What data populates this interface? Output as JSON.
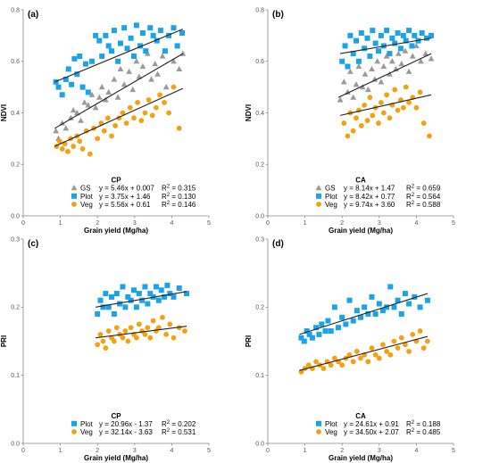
{
  "colors": {
    "GS": "#9a9a9a",
    "Plot": "#1ba3e8",
    "Veg": "#f5a00f",
    "fit_line": "#222222",
    "axis": "#888888"
  },
  "chart_data": [
    {
      "panel": "(a)",
      "type": "scatter",
      "group_title": "CP",
      "xlabel": "Grain yield (Mg/ha)",
      "ylabel": "NDVI",
      "xlim": [
        0,
        5
      ],
      "ylim": [
        0.0,
        0.8
      ],
      "xticks": [
        "0",
        "1",
        "2",
        "3",
        "4",
        "5"
      ],
      "yticks": [
        "0.0",
        "0.2",
        "0.4",
        "0.6",
        "0.8"
      ],
      "legend_placement": "bottom-left",
      "series": [
        {
          "name": "GS",
          "marker": "triangle",
          "equation": "y = 5.46x + 0.007",
          "r2": "0.315",
          "fit": [
            [
              0.85,
              0.34
            ],
            [
              4.3,
              0.63
            ]
          ],
          "x": [
            0.88,
            0.95,
            1.05,
            1.15,
            1.28,
            1.35,
            1.45,
            1.55,
            1.65,
            1.75,
            1.85,
            1.95,
            2.05,
            2.12,
            2.22,
            2.3,
            2.45,
            2.55,
            2.62,
            2.72,
            2.85,
            2.95,
            3.05,
            3.12,
            3.22,
            3.35,
            3.45,
            3.55,
            3.62,
            3.75,
            3.85,
            4.05,
            4.2,
            4.3
          ],
          "y": [
            0.33,
            0.3,
            0.36,
            0.34,
            0.38,
            0.41,
            0.4,
            0.37,
            0.44,
            0.43,
            0.47,
            0.42,
            0.46,
            0.5,
            0.45,
            0.48,
            0.53,
            0.46,
            0.57,
            0.51,
            0.56,
            0.49,
            0.6,
            0.54,
            0.58,
            0.63,
            0.53,
            0.59,
            0.55,
            0.62,
            0.5,
            0.6,
            0.57,
            0.63
          ]
        },
        {
          "name": "Plot",
          "marker": "square",
          "equation": "y = 3.75x + 1.46",
          "r2": "0.130",
          "fit": [
            [
              0.85,
              0.52
            ],
            [
              4.3,
              0.725
            ]
          ],
          "x": [
            0.88,
            0.95,
            1.05,
            1.15,
            1.22,
            1.3,
            1.38,
            1.45,
            1.52,
            1.6,
            1.68,
            1.75,
            1.85,
            1.95,
            2.05,
            2.12,
            2.22,
            2.3,
            2.38,
            2.45,
            2.55,
            2.62,
            2.72,
            2.8,
            2.9,
            2.98,
            3.05,
            3.15,
            3.22,
            3.3,
            3.42,
            3.5,
            3.6,
            3.7,
            3.82,
            3.92,
            4.05,
            4.15,
            4.28
          ],
          "y": [
            0.52,
            0.5,
            0.47,
            0.53,
            0.57,
            0.51,
            0.61,
            0.55,
            0.62,
            0.5,
            0.59,
            0.48,
            0.6,
            0.7,
            0.68,
            0.62,
            0.7,
            0.66,
            0.64,
            0.72,
            0.6,
            0.67,
            0.73,
            0.65,
            0.69,
            0.62,
            0.74,
            0.66,
            0.71,
            0.64,
            0.73,
            0.7,
            0.68,
            0.72,
            0.64,
            0.7,
            0.73,
            0.66,
            0.71
          ]
        },
        {
          "name": "Veg",
          "marker": "circle",
          "equation": "y = 5.56x + 0.61",
          "r2": "0.146",
          "fit": [
            [
              0.85,
              0.27
            ],
            [
              4.3,
              0.495
            ]
          ],
          "x": [
            0.9,
            0.98,
            1.05,
            1.12,
            1.2,
            1.28,
            1.35,
            1.45,
            1.52,
            1.6,
            1.7,
            1.8,
            1.9,
            2.0,
            2.1,
            2.18,
            2.28,
            2.38,
            2.48,
            2.58,
            2.68,
            2.78,
            2.88,
            2.98,
            3.08,
            3.18,
            3.28,
            3.38,
            3.48,
            3.58,
            3.68,
            3.8,
            3.92,
            4.05,
            4.2
          ],
          "y": [
            0.27,
            0.29,
            0.26,
            0.28,
            0.25,
            0.3,
            0.27,
            0.31,
            0.29,
            0.26,
            0.33,
            0.24,
            0.34,
            0.3,
            0.36,
            0.33,
            0.38,
            0.31,
            0.35,
            0.38,
            0.4,
            0.36,
            0.42,
            0.38,
            0.44,
            0.37,
            0.4,
            0.45,
            0.39,
            0.42,
            0.47,
            0.44,
            0.4,
            0.5,
            0.34
          ]
        }
      ]
    },
    {
      "panel": "(b)",
      "type": "scatter",
      "group_title": "CA",
      "xlabel": "Grain yield (Mg/ha)",
      "ylabel": "NDVI",
      "xlim": [
        0,
        5
      ],
      "ylim": [
        0.0,
        0.8
      ],
      "xticks": [
        "0",
        "1",
        "2",
        "3",
        "4",
        "5"
      ],
      "yticks": [
        "0.0",
        "0.2",
        "0.4",
        "0.6",
        "0.8"
      ],
      "legend_placement": "bottom-left",
      "series": [
        {
          "name": "GS",
          "marker": "triangle",
          "equation": "y = 8.14x + 1.47",
          "r2": "0.659",
          "fit": [
            [
              1.9,
              0.46
            ],
            [
              4.4,
              0.63
            ]
          ],
          "x": [
            1.95,
            2.05,
            2.15,
            2.22,
            2.3,
            2.38,
            2.45,
            2.55,
            2.62,
            2.7,
            2.8,
            2.88,
            2.95,
            3.05,
            3.12,
            3.2,
            3.28,
            3.35,
            3.45,
            3.52,
            3.6,
            3.7,
            3.8,
            3.9,
            4.0,
            4.12,
            4.25,
            4.4
          ],
          "y": [
            0.45,
            0.52,
            0.48,
            0.56,
            0.46,
            0.51,
            0.58,
            0.5,
            0.55,
            0.49,
            0.57,
            0.53,
            0.6,
            0.52,
            0.58,
            0.62,
            0.55,
            0.6,
            0.57,
            0.63,
            0.59,
            0.64,
            0.56,
            0.62,
            0.66,
            0.6,
            0.63,
            0.61
          ]
        },
        {
          "name": "Plot",
          "marker": "square",
          "equation": "y = 8.42x + 0.77",
          "r2": "0.564",
          "fit": [
            [
              1.95,
              0.63
            ],
            [
              4.4,
              0.69
            ]
          ],
          "x": [
            2.0,
            2.08,
            2.15,
            2.22,
            2.3,
            2.38,
            2.45,
            2.52,
            2.6,
            2.68,
            2.75,
            2.82,
            2.9,
            2.98,
            3.05,
            3.12,
            3.2,
            3.28,
            3.35,
            3.42,
            3.5,
            3.58,
            3.65,
            3.72,
            3.8,
            3.88,
            3.95,
            4.05,
            4.15,
            4.28,
            4.4
          ],
          "y": [
            0.6,
            0.66,
            0.58,
            0.7,
            0.63,
            0.68,
            0.6,
            0.71,
            0.65,
            0.69,
            0.62,
            0.72,
            0.67,
            0.64,
            0.7,
            0.66,
            0.72,
            0.63,
            0.69,
            0.67,
            0.71,
            0.65,
            0.7,
            0.68,
            0.72,
            0.66,
            0.7,
            0.68,
            0.71,
            0.69,
            0.7
          ]
        },
        {
          "name": "Veg",
          "marker": "circle",
          "equation": "y = 9.74x + 3.60",
          "r2": "0.588",
          "fit": [
            [
              1.95,
              0.39
            ],
            [
              4.4,
              0.47
            ]
          ],
          "x": [
            2.05,
            2.15,
            2.22,
            2.3,
            2.38,
            2.45,
            2.52,
            2.6,
            2.68,
            2.75,
            2.82,
            2.9,
            2.98,
            3.05,
            3.12,
            3.2,
            3.28,
            3.35,
            3.42,
            3.5,
            3.58,
            3.65,
            3.72,
            3.8,
            3.9,
            4.0,
            4.1,
            4.2,
            4.35
          ],
          "y": [
            0.36,
            0.31,
            0.4,
            0.33,
            0.38,
            0.41,
            0.35,
            0.43,
            0.37,
            0.46,
            0.39,
            0.42,
            0.36,
            0.44,
            0.4,
            0.47,
            0.38,
            0.43,
            0.49,
            0.41,
            0.45,
            0.42,
            0.5,
            0.44,
            0.46,
            0.42,
            0.48,
            0.36,
            0.31
          ]
        }
      ]
    },
    {
      "panel": "(c)",
      "type": "scatter",
      "group_title": "CP",
      "xlabel": "Grain yield (Mg/ha)",
      "ylabel": "PRI",
      "xlim": [
        0,
        5
      ],
      "ylim": [
        0.0,
        0.3
      ],
      "xticks": [
        "0",
        "1",
        "2",
        "3",
        "4",
        "5"
      ],
      "yticks": [
        "0.0",
        "0.1",
        "0.2",
        "0.3"
      ],
      "legend_placement": "bottom-left",
      "series": [
        {
          "name": "Plot",
          "marker": "square",
          "equation": "y = 20.96x - 1.37",
          "r2": "0.202",
          "fit": [
            [
              1.95,
              0.2
            ],
            [
              4.4,
              0.223
            ]
          ],
          "x": [
            2.0,
            2.08,
            2.15,
            2.22,
            2.3,
            2.38,
            2.45,
            2.52,
            2.6,
            2.68,
            2.75,
            2.82,
            2.9,
            2.98,
            3.05,
            3.12,
            3.2,
            3.28,
            3.35,
            3.42,
            3.5,
            3.58,
            3.65,
            3.72,
            3.8,
            3.88,
            3.95,
            4.05,
            4.2,
            4.4
          ],
          "y": [
            0.19,
            0.21,
            0.2,
            0.22,
            0.2,
            0.215,
            0.19,
            0.22,
            0.205,
            0.23,
            0.2,
            0.215,
            0.21,
            0.225,
            0.2,
            0.22,
            0.21,
            0.23,
            0.205,
            0.22,
            0.215,
            0.23,
            0.21,
            0.225,
            0.215,
            0.232,
            0.22,
            0.215,
            0.228,
            0.22
          ]
        },
        {
          "name": "Veg",
          "marker": "circle",
          "equation": "y = 32.14x - 3.63",
          "r2": "0.531",
          "fit": [
            [
              1.95,
              0.155
            ],
            [
              4.4,
              0.172
            ]
          ],
          "x": [
            2.0,
            2.08,
            2.15,
            2.22,
            2.3,
            2.38,
            2.45,
            2.52,
            2.6,
            2.68,
            2.75,
            2.82,
            2.9,
            2.98,
            3.05,
            3.12,
            3.2,
            3.28,
            3.35,
            3.42,
            3.5,
            3.58,
            3.65,
            3.75,
            3.85,
            3.95,
            4.05,
            4.2,
            4.35
          ],
          "y": [
            0.145,
            0.16,
            0.15,
            0.14,
            0.165,
            0.155,
            0.15,
            0.17,
            0.16,
            0.155,
            0.165,
            0.15,
            0.17,
            0.16,
            0.155,
            0.175,
            0.165,
            0.16,
            0.17,
            0.155,
            0.18,
            0.165,
            0.17,
            0.185,
            0.16,
            0.175,
            0.155,
            0.17,
            0.165
          ]
        }
      ]
    },
    {
      "panel": "(d)",
      "type": "scatter",
      "group_title": "CA",
      "xlabel": "Grain yield (Mg/ha)",
      "ylabel": "PRI",
      "xlim": [
        0,
        5
      ],
      "ylim": [
        0.0,
        0.3
      ],
      "xticks": [
        "0",
        "1",
        "2",
        "3",
        "4",
        "5"
      ],
      "yticks": [
        "0.0",
        "0.1",
        "0.2",
        "0.3"
      ],
      "legend_placement": "bottom-left",
      "series": [
        {
          "name": "Plot",
          "marker": "square",
          "equation": "y = 24.61x + 0.91",
          "r2": "0.188",
          "fit": [
            [
              0.85,
              0.16
            ],
            [
              4.3,
              0.22
            ]
          ],
          "x": [
            0.9,
            0.98,
            1.05,
            1.12,
            1.2,
            1.3,
            1.38,
            1.45,
            1.55,
            1.62,
            1.7,
            1.8,
            1.9,
            2.0,
            2.1,
            2.2,
            2.3,
            2.4,
            2.5,
            2.6,
            2.7,
            2.8,
            2.9,
            3.0,
            3.1,
            3.2,
            3.3,
            3.4,
            3.5,
            3.6,
            3.7,
            3.8,
            3.95,
            4.1,
            4.3
          ],
          "y": [
            0.155,
            0.15,
            0.165,
            0.16,
            0.155,
            0.17,
            0.16,
            0.175,
            0.165,
            0.18,
            0.165,
            0.2,
            0.17,
            0.185,
            0.175,
            0.21,
            0.18,
            0.195,
            0.185,
            0.2,
            0.19,
            0.215,
            0.19,
            0.205,
            0.195,
            0.2,
            0.23,
            0.2,
            0.21,
            0.19,
            0.22,
            0.205,
            0.215,
            0.2,
            0.21
          ]
        },
        {
          "name": "Veg",
          "marker": "circle",
          "equation": "y = 34.50x + 2.07",
          "r2": "0.485",
          "fit": [
            [
              0.85,
              0.107
            ],
            [
              4.3,
              0.157
            ]
          ],
          "x": [
            0.9,
            1.0,
            1.1,
            1.2,
            1.3,
            1.4,
            1.5,
            1.6,
            1.7,
            1.8,
            1.9,
            2.0,
            2.1,
            2.2,
            2.3,
            2.4,
            2.5,
            2.6,
            2.7,
            2.8,
            2.9,
            3.0,
            3.1,
            3.2,
            3.3,
            3.4,
            3.5,
            3.6,
            3.7,
            3.8,
            3.9,
            4.0,
            4.1,
            4.2,
            4.3
          ],
          "y": [
            0.105,
            0.11,
            0.115,
            0.11,
            0.12,
            0.115,
            0.11,
            0.12,
            0.115,
            0.125,
            0.12,
            0.115,
            0.125,
            0.13,
            0.12,
            0.135,
            0.125,
            0.13,
            0.12,
            0.14,
            0.13,
            0.125,
            0.145,
            0.135,
            0.13,
            0.15,
            0.14,
            0.155,
            0.145,
            0.135,
            0.16,
            0.15,
            0.165,
            0.14,
            0.15
          ]
        }
      ]
    }
  ]
}
